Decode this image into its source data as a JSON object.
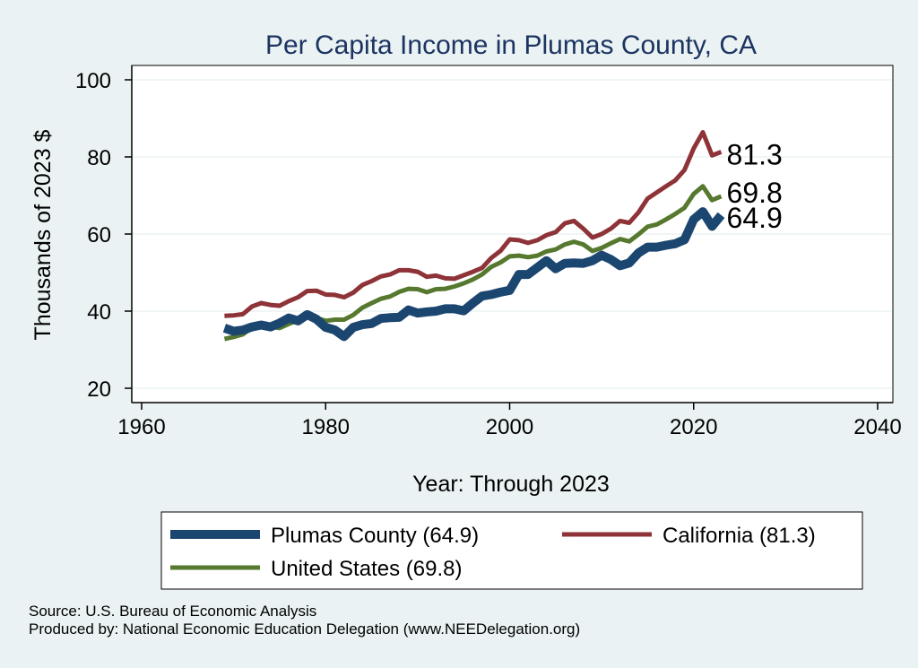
{
  "chart_data": {
    "type": "line",
    "title": "Per Capita Income in Plumas County, CA",
    "xlabel": "Year: Through 2023",
    "ylabel": "Thousands of 2023 $",
    "xlim": [
      1960,
      2040
    ],
    "ylim": [
      20,
      100
    ],
    "xticks": [
      1960,
      1980,
      2000,
      2020,
      2040
    ],
    "yticks": [
      20,
      40,
      60,
      80,
      100
    ],
    "x": [
      1969,
      1970,
      1971,
      1972,
      1973,
      1974,
      1975,
      1976,
      1977,
      1978,
      1979,
      1980,
      1981,
      1982,
      1983,
      1984,
      1985,
      1986,
      1987,
      1988,
      1989,
      1990,
      1991,
      1992,
      1993,
      1994,
      1995,
      1996,
      1997,
      1998,
      1999,
      2000,
      2001,
      2002,
      2003,
      2004,
      2005,
      2006,
      2007,
      2008,
      2009,
      2010,
      2011,
      2012,
      2013,
      2014,
      2015,
      2016,
      2017,
      2018,
      2019,
      2020,
      2021,
      2022,
      2023
    ],
    "series": [
      {
        "name": "California",
        "color": "#8E3338",
        "width": 5,
        "values": [
          38.8,
          38.9,
          39.2,
          41.2,
          42.1,
          41.6,
          41.4,
          42.6,
          43.6,
          45.2,
          45.3,
          44.3,
          44.2,
          43.6,
          44.8,
          46.8,
          47.8,
          49.0,
          49.5,
          50.6,
          50.6,
          50.2,
          48.9,
          49.2,
          48.5,
          48.4,
          49.3,
          50.2,
          51.2,
          53.8,
          55.6,
          58.6,
          58.4,
          57.7,
          58.4,
          59.7,
          60.5,
          62.8,
          63.4,
          61.4,
          59.1,
          60.0,
          61.4,
          63.4,
          62.9,
          65.6,
          69.2,
          70.8,
          72.4,
          73.9,
          76.6,
          82.2,
          86.4,
          80.4,
          81.3
        ]
      },
      {
        "name": "United States",
        "color": "#56792F",
        "width": 5,
        "values": [
          32.8,
          33.3,
          34.0,
          35.7,
          36.8,
          36.1,
          35.6,
          36.7,
          37.6,
          38.6,
          38.2,
          37.5,
          37.8,
          37.8,
          39.0,
          40.9,
          42.1,
          43.2,
          43.8,
          45.0,
          45.8,
          45.7,
          44.9,
          45.7,
          45.8,
          46.4,
          47.2,
          48.2,
          49.5,
          51.5,
          52.6,
          54.2,
          54.4,
          54.0,
          54.4,
          55.5,
          56.0,
          57.3,
          58.0,
          57.3,
          55.6,
          56.4,
          57.6,
          58.7,
          58.1,
          59.9,
          61.9,
          62.5,
          63.8,
          65.2,
          66.8,
          70.4,
          72.4,
          68.8,
          69.8
        ]
      },
      {
        "name": "Plumas County",
        "color": "#1B4670",
        "width": 10,
        "values": [
          35.6,
          34.8,
          35.1,
          35.9,
          36.4,
          35.9,
          36.9,
          38.2,
          37.5,
          39.1,
          37.9,
          35.8,
          35.1,
          33.4,
          35.8,
          36.5,
          36.8,
          38.1,
          38.3,
          38.4,
          40.3,
          39.5,
          39.8,
          40.0,
          40.6,
          40.6,
          40.1,
          42.1,
          43.9,
          44.3,
          44.9,
          45.4,
          49.5,
          49.5,
          51.3,
          53.1,
          51.0,
          52.4,
          52.5,
          52.4,
          53.1,
          54.5,
          53.4,
          51.8,
          52.5,
          55.1,
          56.6,
          56.6,
          57.1,
          57.5,
          58.5,
          63.8,
          65.8,
          62.0,
          64.9
        ]
      }
    ],
    "end_labels": [
      {
        "series": "California",
        "text": "81.3"
      },
      {
        "series": "United States",
        "text": "69.8"
      },
      {
        "series": "Plumas County",
        "text": "64.9"
      }
    ],
    "legend": {
      "position": "bottom",
      "items": [
        {
          "series": "Plumas County",
          "label": "Plumas County (64.9)"
        },
        {
          "series": "California",
          "label": "California (81.3)"
        },
        {
          "series": "United States",
          "label": "United States (69.8)"
        }
      ]
    }
  },
  "footer": {
    "source": "Source: U.S. Bureau of Economic Analysis",
    "produced_by": "Produced by: National Economic Education Delegation (www.NEEDelegation.org)"
  }
}
